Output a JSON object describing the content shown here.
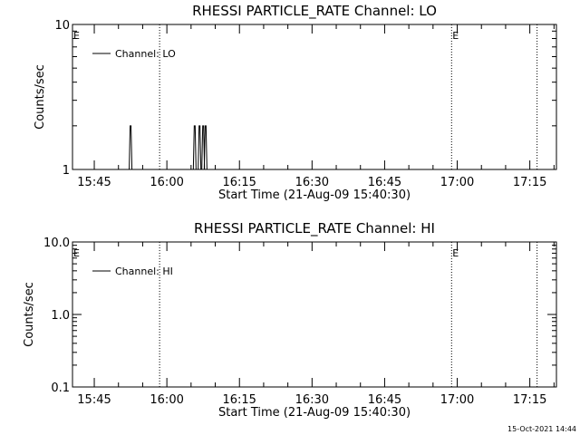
{
  "chart_data": [
    {
      "type": "line",
      "title": "RHESSI PARTICLE_RATE Channel: LO",
      "xlabel": "Start Time (21-Aug-09 15:40:30)",
      "ylabel": "Counts/sec",
      "y_scale": "log",
      "ylim": [
        1,
        10
      ],
      "ytick_labels": [
        "1",
        "10"
      ],
      "xlim": [
        "15:40:30",
        "17:20:30"
      ],
      "xtick_labels": [
        "15:45",
        "16:00",
        "16:15",
        "16:30",
        "16:45",
        "17:00",
        "17:15"
      ],
      "grid": false,
      "legend": {
        "position": "top-left",
        "entries": [
          "Channel: LO"
        ]
      },
      "series": [
        {
          "name": "Channel: LO",
          "color": "#000000",
          "spikes": [
            {
              "time": "15:52:30",
              "value": 2
            },
            {
              "time": "16:05:45",
              "value": 2
            },
            {
              "time": "16:06:45",
              "value": 2
            },
            {
              "time": "16:07:30",
              "value": 2
            },
            {
              "time": "16:08:00",
              "value": 2
            }
          ]
        }
      ],
      "vlines": [
        {
          "time": "15:58:30",
          "label": ""
        },
        {
          "time": "16:58:50",
          "label": ""
        },
        {
          "time": "17:16:30",
          "label": ""
        }
      ],
      "markers": [
        {
          "time": "15:40:30",
          "label": "E"
        },
        {
          "time": "16:58:50",
          "label": "E"
        }
      ]
    },
    {
      "type": "line",
      "title": "RHESSI PARTICLE_RATE Channel: HI",
      "xlabel": "Start Time (21-Aug-09 15:40:30)",
      "ylabel": "Counts/sec",
      "y_scale": "log",
      "ylim": [
        0.1,
        10
      ],
      "ytick_labels": [
        "0.1",
        "1.0",
        "10.0"
      ],
      "xlim": [
        "15:40:30",
        "17:20:30"
      ],
      "xtick_labels": [
        "15:45",
        "16:00",
        "16:15",
        "16:30",
        "16:45",
        "17:00",
        "17:15"
      ],
      "grid": false,
      "legend": {
        "position": "top-left",
        "entries": [
          "Channel: HI"
        ]
      },
      "series": [
        {
          "name": "Channel: HI",
          "color": "#000000",
          "spikes": []
        }
      ],
      "vlines": [
        {
          "time": "15:58:30",
          "label": ""
        },
        {
          "time": "16:58:50",
          "label": ""
        },
        {
          "time": "17:16:30",
          "label": ""
        }
      ],
      "markers": [
        {
          "time": "15:40:30",
          "label": "E"
        },
        {
          "time": "16:58:50",
          "label": "E"
        }
      ]
    }
  ],
  "footer": {
    "timestamp": "15-Oct-2021 14:44"
  }
}
